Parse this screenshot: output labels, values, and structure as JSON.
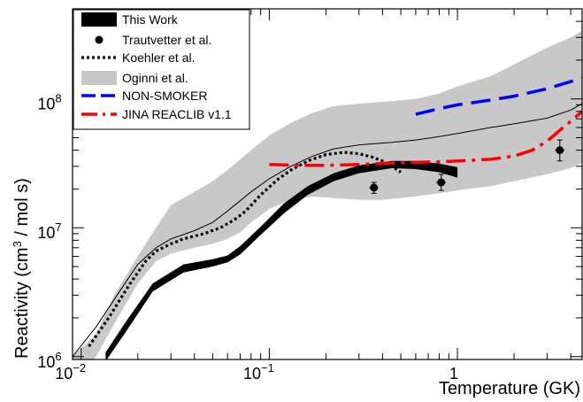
{
  "chart_data": {
    "type": "line",
    "xscale": "log",
    "yscale": "log",
    "xlim": [
      0.009,
      4.6
    ],
    "ylim": [
      950000,
      500000000
    ],
    "xlabel": "Temperature (GK)",
    "ylabel_prefix": "Reactivity (cm",
    "ylabel_sup": "3",
    "ylabel_suffix": " / mol s)",
    "x_ticks": [
      {
        "value": 0.01,
        "base": "10",
        "exp": "−2"
      },
      {
        "value": 0.1,
        "base": "10",
        "exp": "−1"
      },
      {
        "value": 1,
        "base": "1",
        "exp": ""
      }
    ],
    "y_ticks": [
      {
        "value": 1000000,
        "base": "10",
        "exp": "6"
      },
      {
        "value": 10000000,
        "base": "10",
        "exp": "7"
      },
      {
        "value": 100000000,
        "base": "10",
        "exp": "8"
      }
    ],
    "legend": [
      {
        "label": "This Work",
        "style": "band-black"
      },
      {
        "label": "Trautvetter et al.",
        "style": "point"
      },
      {
        "label": "Koehler et al.",
        "style": "dotted"
      },
      {
        "label": "Oginni et al.",
        "style": "band-gray"
      },
      {
        "label": "NON-SMOKER",
        "style": "dash-blue"
      },
      {
        "label": "JINA REACLIB v1.1",
        "style": "dashdot-red"
      }
    ],
    "colors": {
      "this_work": "#000000",
      "oginni_band": "#c8c8c8",
      "non_smoker": "#0000ff",
      "jina": "#ff0000",
      "koehler": "#000000"
    },
    "series": [
      {
        "name": "This Work",
        "kind": "band",
        "x": [
          0.0135,
          0.017,
          0.024,
          0.035,
          0.05,
          0.06,
          0.07,
          0.09,
          0.12,
          0.16,
          0.22,
          0.3,
          0.45,
          0.6,
          0.8,
          1.0
        ],
        "low": [
          920000,
          1500000,
          3200000,
          4500000,
          5000000,
          5400000,
          6200000,
          8800000,
          13000000,
          18000000,
          23000000,
          26500000,
          29000000,
          28500000,
          27000000,
          24500000
        ],
        "high": [
          1080000,
          1800000,
          3700000,
          5200000,
          5700000,
          6100000,
          7200000,
          10200000,
          15500000,
          21000000,
          26500000,
          30500000,
          33000000,
          33000000,
          31500000,
          29500000
        ]
      },
      {
        "name": "Oginni et al.",
        "kind": "band",
        "x": [
          0.009,
          0.012,
          0.015,
          0.02,
          0.025,
          0.03,
          0.04,
          0.05,
          0.06,
          0.07,
          0.08,
          0.1,
          0.13,
          0.17,
          0.22,
          0.3,
          0.4,
          0.6,
          0.8,
          1.0,
          1.5,
          2.0,
          3.0,
          4.0,
          4.6
        ],
        "low": [
          600000,
          1000000,
          1800000,
          3700000,
          5500000,
          6300000,
          7000000,
          7500000,
          8200000,
          9200000,
          11000000,
          14000000,
          16500000,
          17500000,
          17000000,
          16500000,
          16500000,
          17500000,
          18500000,
          19500000,
          21000000,
          23000000,
          26000000,
          29000000,
          32000000
        ],
        "high": [
          1000000,
          1500000,
          3000000,
          6000000,
          10000000,
          15000000,
          19000000,
          23000000,
          28000000,
          34000000,
          40000000,
          52000000,
          65000000,
          78000000,
          88000000,
          92000000,
          95000000,
          100000000,
          110000000,
          125000000,
          150000000,
          185000000,
          250000000,
          300000000,
          340000000
        ]
      },
      {
        "name": "",
        "kind": "line",
        "style": "thin",
        "x": [
          0.009,
          0.012,
          0.016,
          0.02,
          0.025,
          0.03,
          0.04,
          0.05,
          0.06,
          0.08,
          0.1,
          0.13,
          0.17,
          0.22,
          0.3,
          0.45,
          0.6,
          0.8,
          1.0,
          1.5,
          2.0,
          3.0,
          4.0,
          4.6
        ],
        "y": [
          1000000,
          1700000,
          3200000,
          5200000,
          7000000,
          8200000,
          9500000,
          11000000,
          13500000,
          19000000,
          24000000,
          30000000,
          36000000,
          41000000,
          44000000,
          46000000,
          48000000,
          51000000,
          54000000,
          60000000,
          64000000,
          71000000,
          82000000,
          92000000
        ]
      },
      {
        "name": "Koehler et al.",
        "kind": "line",
        "style": "dotted",
        "x": [
          0.011,
          0.014,
          0.018,
          0.022,
          0.025,
          0.03,
          0.035,
          0.045,
          0.055,
          0.065,
          0.075,
          0.09,
          0.11,
          0.13,
          0.16,
          0.2,
          0.25,
          0.3,
          0.35,
          0.4,
          0.45,
          0.5
        ],
        "y": [
          1200000,
          2000000,
          3600000,
          5500000,
          6600000,
          7500000,
          8200000,
          9000000,
          10000000,
          11500000,
          13500000,
          18000000,
          23500000,
          28000000,
          33000000,
          37000000,
          38500000,
          37500000,
          35500000,
          33000000,
          30000000,
          27000000
        ]
      },
      {
        "name": "NON-SMOKER",
        "kind": "line",
        "style": "dash-blue",
        "x": [
          0.6,
          0.8,
          1.0,
          1.5,
          2.0,
          3.0,
          4.6
        ],
        "y": [
          76000000,
          84000000,
          90000000,
          98000000,
          105000000,
          120000000,
          145000000
        ]
      },
      {
        "name": "JINA REACLIB v1.1",
        "kind": "line",
        "style": "dashdot-red",
        "x": [
          0.1,
          0.15,
          0.2,
          0.3,
          0.5,
          0.8,
          1.0,
          1.5,
          2.0,
          2.5,
          3.0,
          3.5,
          4.0,
          4.6
        ],
        "y": [
          31000000,
          30500000,
          30500000,
          31000000,
          32000000,
          32500000,
          33000000,
          34000000,
          36000000,
          40000000,
          47000000,
          57000000,
          67000000,
          80000000
        ]
      },
      {
        "name": "Trautvetter et al.",
        "kind": "points",
        "x": [
          0.36,
          0.82,
          3.5
        ],
        "y": [
          20500000,
          22500000,
          40000000
        ],
        "yerr_low": [
          18500000,
          19500000,
          33000000
        ],
        "yerr_high": [
          22500000,
          26000000,
          48000000
        ],
        "xerr_low": [
          0.34,
          0.77,
          3.3
        ],
        "xerr_high": [
          0.38,
          0.87,
          3.7
        ]
      }
    ]
  }
}
